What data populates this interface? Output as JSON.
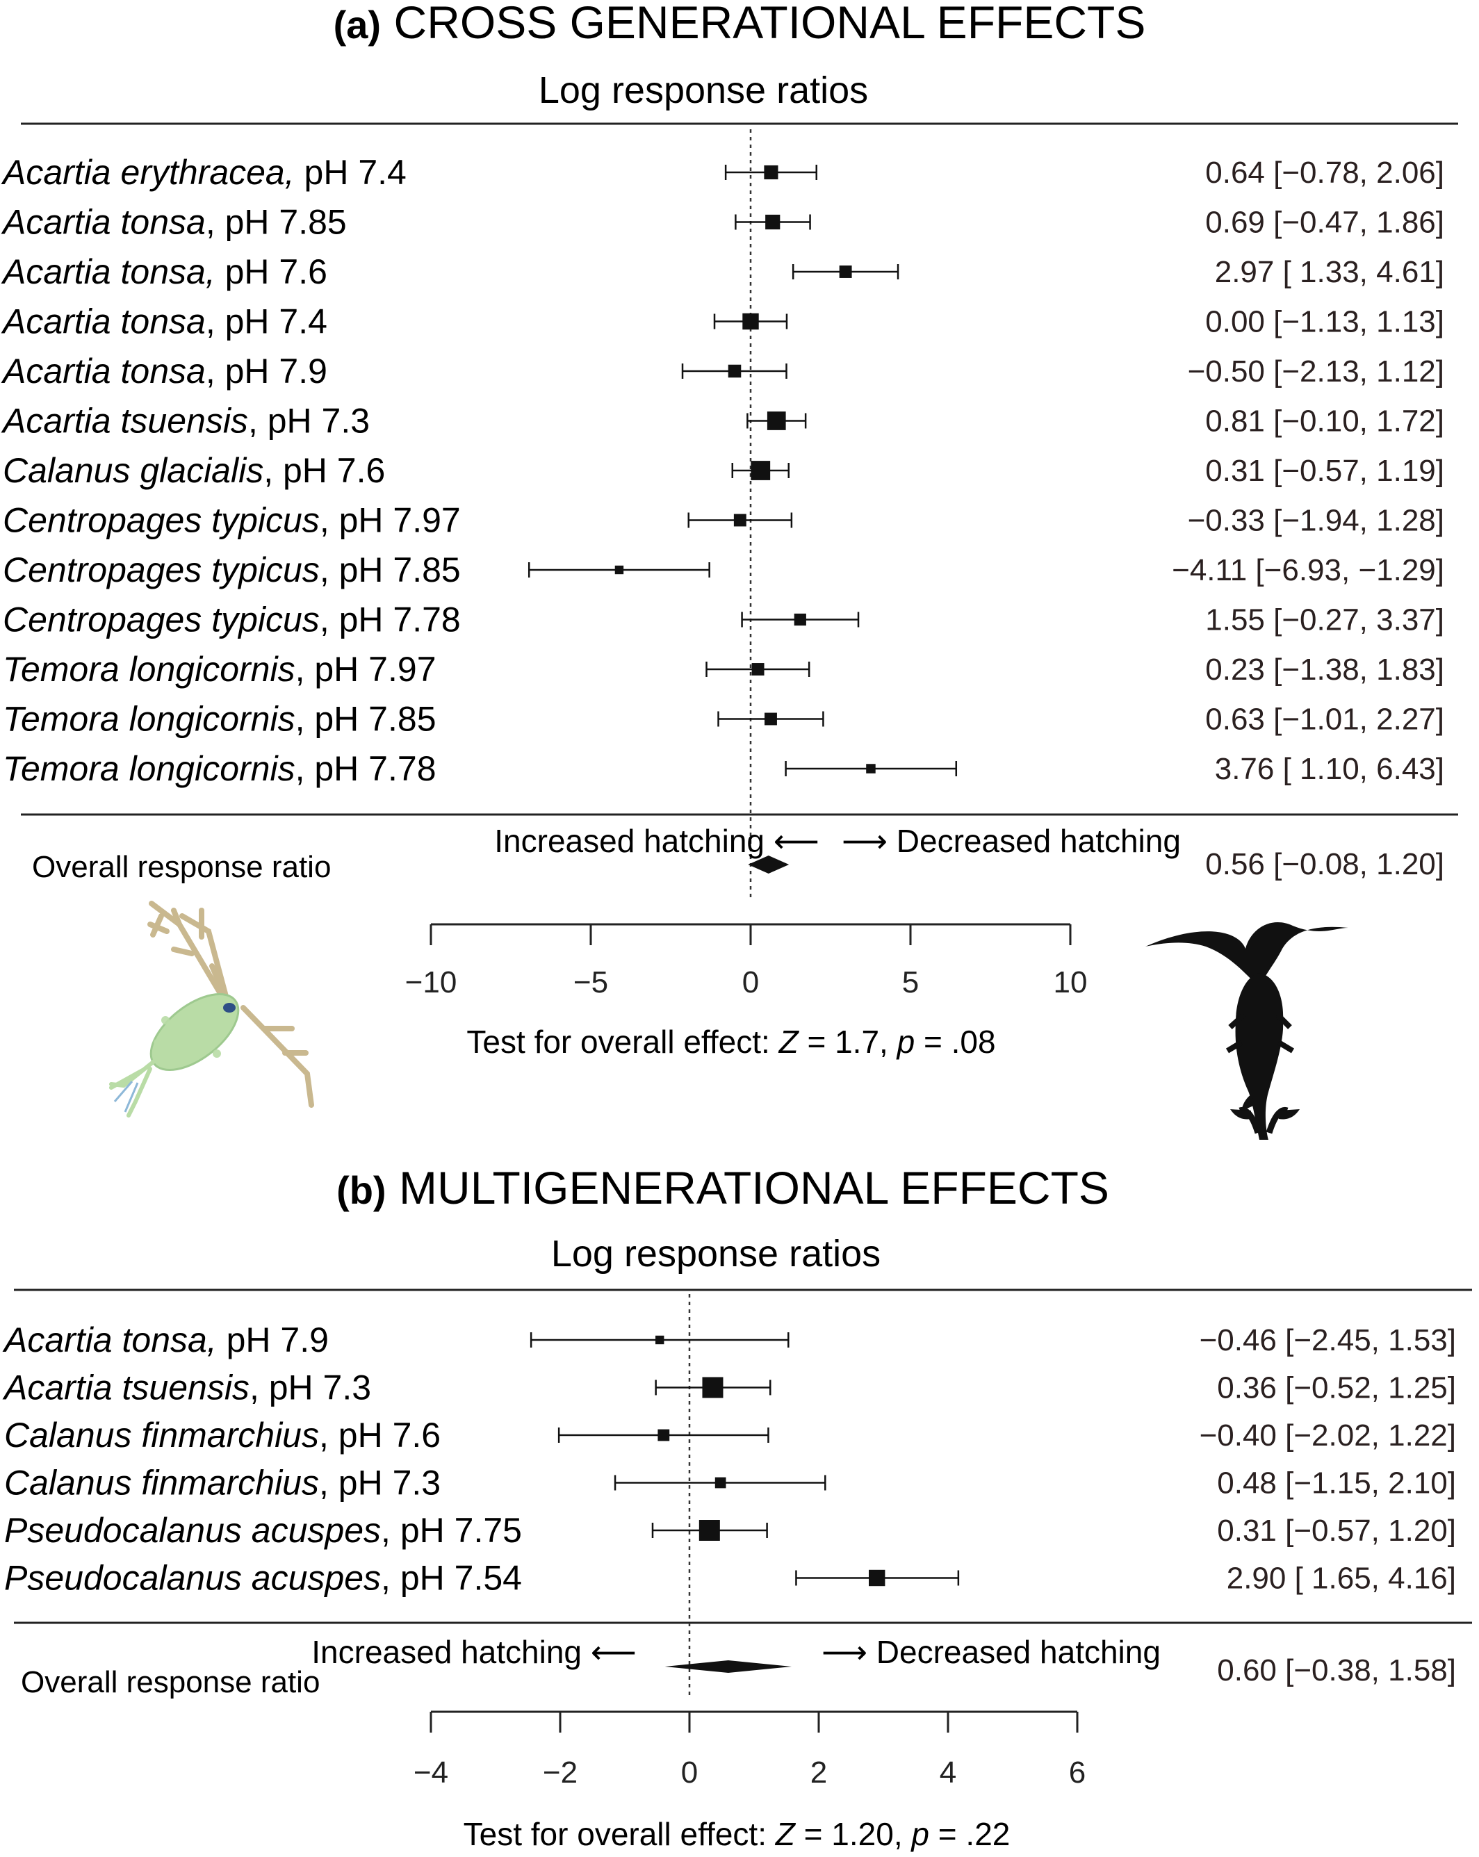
{
  "chart_data": [
    {
      "type": "forest",
      "panel": "(a)",
      "title": "CROSS GENERATIONAL EFFECTS",
      "subtitle": "Log response ratios",
      "xlim": [
        -10,
        10
      ],
      "ticks": [
        -10,
        -5,
        0,
        5,
        10
      ],
      "tick_labels": [
        "−10",
        "−5",
        "0",
        "5",
        "10"
      ],
      "studies": [
        {
          "species": "Acartia erythracea,",
          "condition": " pH 7.4",
          "est": 0.64,
          "lo": -0.78,
          "hi": 2.06,
          "ci_text": "0.64 [−0.78,  2.06]",
          "weight": 0.55
        },
        {
          "species": "Acartia tonsa",
          "condition": ", pH 7.85",
          "est": 0.69,
          "lo": -0.47,
          "hi": 1.86,
          "ci_text": "0.69 [−0.47,  1.86]",
          "weight": 0.6
        },
        {
          "species": "Acartia tonsa,",
          "condition": " pH 7.6",
          "est": 2.97,
          "lo": 1.33,
          "hi": 4.61,
          "ci_text": "2.97 [ 1.33,  4.61]",
          "weight": 0.45
        },
        {
          "species": "Acartia tonsa",
          "condition": ", pH 7.4",
          "est": 0.0,
          "lo": -1.13,
          "hi": 1.13,
          "ci_text": "0.00 [−1.13,  1.13]",
          "weight": 0.7
        },
        {
          "species": "Acartia tonsa",
          "condition": ", pH 7.9",
          "est": -0.5,
          "lo": -2.13,
          "hi": 1.12,
          "ci_text": "−0.50 [−2.13,  1.12]",
          "weight": 0.48
        },
        {
          "species": "Acartia tsuensis",
          "condition": ", pH 7.3",
          "est": 0.81,
          "lo": -0.1,
          "hi": 1.72,
          "ci_text": "0.81 [−0.10,  1.72]",
          "weight": 0.85
        },
        {
          "species": "Calanus glacialis",
          "condition": ", pH 7.6",
          "est": 0.31,
          "lo": -0.57,
          "hi": 1.19,
          "ci_text": "0.31 [−0.57,  1.19]",
          "weight": 0.9
        },
        {
          "species": "Centropages typicus",
          "condition": ", pH 7.97",
          "est": -0.33,
          "lo": -1.94,
          "hi": 1.28,
          "ci_text": "−0.33 [−1.94,  1.28]",
          "weight": 0.45
        },
        {
          "species": "Centropages typicus",
          "condition": ", pH 7.85",
          "est": -4.11,
          "lo": -6.93,
          "hi": -1.29,
          "ci_text": "−4.11 [−6.93, −1.29]",
          "weight": 0.2
        },
        {
          "species": "Centropages typicus",
          "condition": ", pH 7.78",
          "est": 1.55,
          "lo": -0.27,
          "hi": 3.37,
          "ci_text": "1.55 [−0.27,  3.37]",
          "weight": 0.42
        },
        {
          "species": "Temora longicornis",
          "condition": ", pH 7.97",
          "est": 0.23,
          "lo": -1.38,
          "hi": 1.83,
          "ci_text": "0.23 [−1.38,  1.83]",
          "weight": 0.45
        },
        {
          "species": "Temora longicornis",
          "condition": ", pH 7.85",
          "est": 0.63,
          "lo": -1.01,
          "hi": 2.27,
          "ci_text": "0.63 [−1.01,  2.27]",
          "weight": 0.45
        },
        {
          "species": "Temora longicornis",
          "condition": ", pH 7.78",
          "est": 3.76,
          "lo": 1.1,
          "hi": 6.43,
          "ci_text": "3.76 [ 1.10,  6.43]",
          "weight": 0.25
        }
      ],
      "overall": {
        "label": "Overall response ratio",
        "est": 0.56,
        "lo": -0.08,
        "hi": 1.2,
        "ci_text": "0.56 [−0.08,  1.20]"
      },
      "left_direction": "Increased hatching ⟵",
      "right_direction": "⟶ Decreased hatching",
      "test_prefix": "Test for overall effect: ",
      "test_z": "Z",
      "test_z_value": " = 1.7, ",
      "test_p": "p",
      "test_p_value": " =  .08"
    },
    {
      "type": "forest",
      "panel": "(b)",
      "title": "MULTIGENERATIONAL EFFECTS",
      "subtitle": "Log response ratios",
      "xlim": [
        -4,
        6
      ],
      "ticks": [
        -4,
        -2,
        0,
        2,
        4,
        6
      ],
      "tick_labels": [
        "−4",
        "−2",
        "0",
        "2",
        "4",
        "6"
      ],
      "studies": [
        {
          "species": "Acartia tonsa,",
          "condition": " pH 7.9",
          "est": -0.46,
          "lo": -2.45,
          "hi": 1.53,
          "ci_text": "−0.46 [−2.45, 1.53]",
          "weight": 0.2
        },
        {
          "species": "Acartia tsuensis",
          "condition": ", pH 7.3",
          "est": 0.36,
          "lo": -0.52,
          "hi": 1.25,
          "ci_text": "0.36 [−0.52, 1.25]",
          "weight": 1.0
        },
        {
          "species": "Calanus finmarchius",
          "condition": ", pH 7.6",
          "est": -0.4,
          "lo": -2.02,
          "hi": 1.22,
          "ci_text": "−0.40 [−2.02, 1.22]",
          "weight": 0.4
        },
        {
          "species": "Calanus finmarchius",
          "condition": ", pH 7.3",
          "est": 0.48,
          "lo": -1.15,
          "hi": 2.1,
          "ci_text": "0.48 [−1.15, 2.10]",
          "weight": 0.35
        },
        {
          "species": "Pseudocalanus acuspes",
          "condition": ", pH 7.75",
          "est": 0.31,
          "lo": -0.57,
          "hi": 1.2,
          "ci_text": "0.31 [−0.57, 1.20]",
          "weight": 1.0
        },
        {
          "species": "Pseudocalanus acuspes",
          "condition": ", pH 7.54",
          "est": 2.9,
          "lo": 1.65,
          "hi": 4.16,
          "ci_text": "2.90 [ 1.65, 4.16]",
          "weight": 0.7
        }
      ],
      "overall": {
        "label": "Overall response ratio",
        "est": 0.6,
        "lo": -0.38,
        "hi": 1.58,
        "ci_text": "0.60 [−0.38, 1.58]"
      },
      "left_direction": "Increased hatching ⟵",
      "right_direction": "⟶ Decreased hatching",
      "test_prefix": "Test for overall effect: ",
      "test_z": "Z",
      "test_z_value": " = 1.20, ",
      "test_p": "p",
      "test_p_value": " =  .22"
    }
  ],
  "illustrations": {
    "left_icon": "copepod-drawing-icon",
    "right_icon": "copepod-silhouette-icon"
  },
  "colors": {
    "ink": "#111111",
    "copepod_body": "#b9dca6",
    "copepod_antenna": "#c9b88f",
    "copepod_eye": "#2e4f86",
    "silhouette": "#111111"
  }
}
